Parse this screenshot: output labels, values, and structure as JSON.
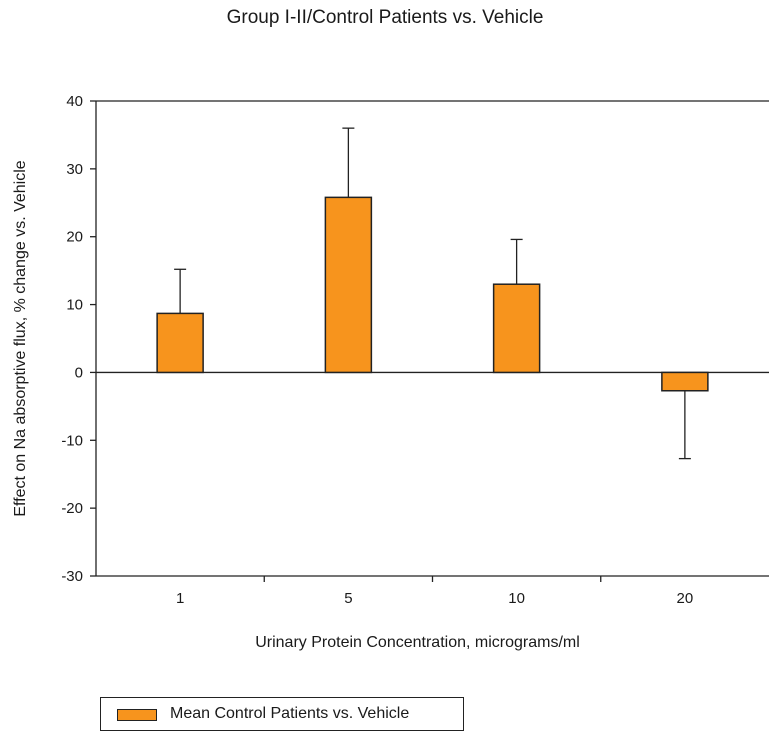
{
  "chart_data": {
    "type": "bar",
    "title": "Group I-II/Control Patients vs. Vehicle",
    "xlabel": "Urinary Protein Concentration, micrograms/ml",
    "ylabel": "Effect on Na absorptive flux, % change vs. Vehicle",
    "categories": [
      "1",
      "5",
      "10",
      "20"
    ],
    "ylim": [
      -30,
      40
    ],
    "yticks": [
      40,
      30,
      20,
      10,
      0,
      -10,
      -20,
      -30
    ],
    "grid": false,
    "legend_position": "bottom-left",
    "series": [
      {
        "name": "Mean Control Patients vs. Vehicle",
        "values": [
          8.7,
          25.8,
          13.0,
          -2.7
        ],
        "error_bars": [
          6.5,
          10.2,
          6.6,
          10.0
        ],
        "color": "#F7941D"
      }
    ]
  }
}
